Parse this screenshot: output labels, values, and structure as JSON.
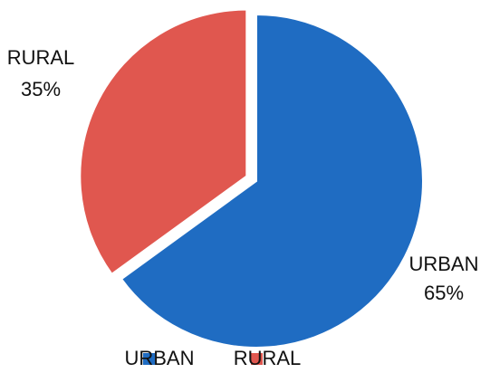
{
  "chart_data": {
    "type": "pie",
    "categories": [
      "URBAN",
      "RURAL"
    ],
    "values": [
      65,
      35
    ],
    "value_labels": [
      "65%",
      "35%"
    ],
    "colors": [
      "#1f6cc2",
      "#e0574f"
    ],
    "explode": [
      false,
      true
    ],
    "legend": "bottom"
  }
}
